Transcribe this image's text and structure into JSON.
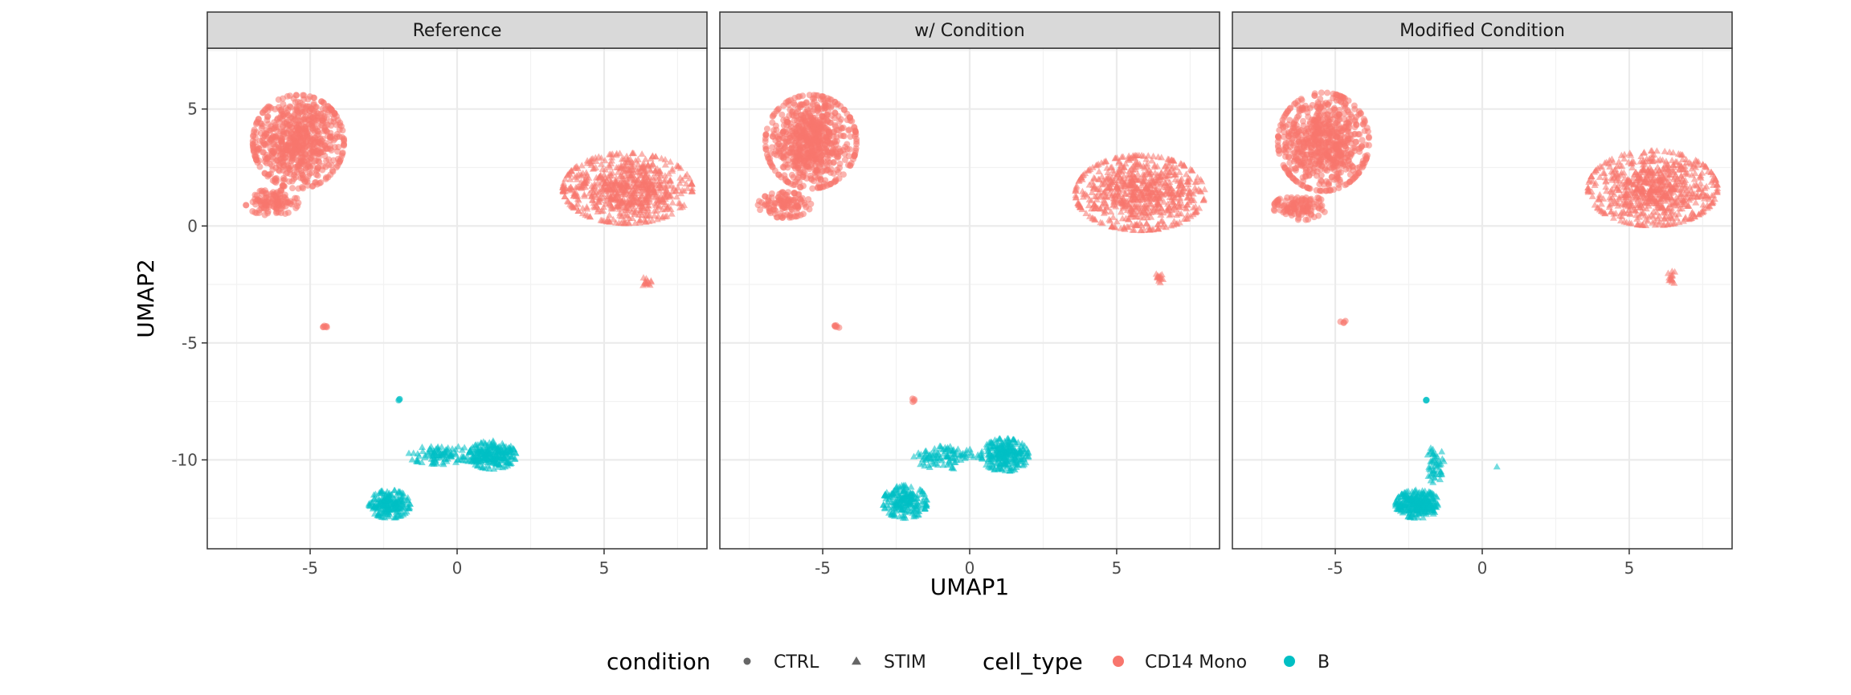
{
  "chart_data": {
    "type": "scatter",
    "xlabel": "UMAP1",
    "ylabel": "UMAP2",
    "xlim": [
      -8.5,
      8.5
    ],
    "ylim": [
      -13.8,
      7.6
    ],
    "x_ticks": [
      -5,
      0,
      5
    ],
    "y_ticks": [
      5,
      0,
      -5,
      -10
    ],
    "grid": true,
    "legend_position": "bottom",
    "legend": {
      "condition_title": "condition",
      "conditions": [
        {
          "name": "CTRL",
          "shape": "circle"
        },
        {
          "name": "STIM",
          "shape": "triangle"
        }
      ],
      "cell_type_title": "cell_type",
      "cell_types": [
        {
          "name": "CD14 Mono",
          "color": "#F8766D"
        },
        {
          "name": "B",
          "color": "#00BFC4"
        }
      ]
    },
    "panels": [
      {
        "title": "Reference",
        "clusters": [
          {
            "cell_type": "CD14 Mono",
            "condition": "CTRL",
            "cx": -5.4,
            "cy": 3.6,
            "rx": 1.55,
            "ry": 2.0,
            "n": 700
          },
          {
            "cell_type": "CD14 Mono",
            "condition": "CTRL",
            "cx": -6.3,
            "cy": 1.0,
            "rx": 0.9,
            "ry": 0.55,
            "n": 120
          },
          {
            "cell_type": "CD14 Mono",
            "condition": "STIM",
            "cx": 5.8,
            "cy": 1.6,
            "rx": 2.2,
            "ry": 1.5,
            "n": 700
          },
          {
            "cell_type": "CD14 Mono",
            "condition": "STIM",
            "cx": 6.45,
            "cy": -2.4,
            "rx": 0.15,
            "ry": 0.25,
            "n": 14
          },
          {
            "cell_type": "CD14 Mono",
            "condition": "CTRL",
            "cx": -4.5,
            "cy": -4.3,
            "rx": 0.1,
            "ry": 0.1,
            "n": 6
          },
          {
            "cell_type": "B",
            "condition": "CTRL",
            "cx": -2.0,
            "cy": -7.45,
            "rx": 0.06,
            "ry": 0.08,
            "n": 3
          },
          {
            "cell_type": "B",
            "condition": "STIM",
            "cx": -2.3,
            "cy": -11.9,
            "rx": 0.7,
            "ry": 0.6,
            "n": 200
          },
          {
            "cell_type": "B",
            "condition": "STIM",
            "cx": 1.2,
            "cy": -9.8,
            "rx": 0.8,
            "ry": 0.6,
            "n": 240
          },
          {
            "cell_type": "B",
            "condition": "STIM",
            "cx": -0.5,
            "cy": -9.8,
            "rx": 1.2,
            "ry": 0.4,
            "n": 100
          }
        ]
      },
      {
        "title": "w/ Condition",
        "clusters": [
          {
            "cell_type": "CD14 Mono",
            "condition": "CTRL",
            "cx": -5.4,
            "cy": 3.6,
            "rx": 1.55,
            "ry": 2.0,
            "n": 700
          },
          {
            "cell_type": "CD14 Mono",
            "condition": "CTRL",
            "cx": -6.3,
            "cy": 0.9,
            "rx": 0.9,
            "ry": 0.55,
            "n": 120
          },
          {
            "cell_type": "CD14 Mono",
            "condition": "STIM",
            "cx": 5.8,
            "cy": 1.4,
            "rx": 2.2,
            "ry": 1.6,
            "n": 700
          },
          {
            "cell_type": "CD14 Mono",
            "condition": "STIM",
            "cx": 6.45,
            "cy": -2.2,
            "rx": 0.15,
            "ry": 0.3,
            "n": 14
          },
          {
            "cell_type": "CD14 Mono",
            "condition": "CTRL",
            "cx": -4.5,
            "cy": -4.3,
            "rx": 0.1,
            "ry": 0.1,
            "n": 6
          },
          {
            "cell_type": "CD14 Mono",
            "condition": "CTRL",
            "cx": -1.9,
            "cy": -7.45,
            "rx": 0.08,
            "ry": 0.08,
            "n": 4
          },
          {
            "cell_type": "B",
            "condition": "STIM",
            "cx": -2.2,
            "cy": -11.8,
            "rx": 0.75,
            "ry": 0.7,
            "n": 200
          },
          {
            "cell_type": "B",
            "condition": "STIM",
            "cx": 1.2,
            "cy": -9.8,
            "rx": 0.8,
            "ry": 0.7,
            "n": 240
          },
          {
            "cell_type": "B",
            "condition": "STIM",
            "cx": -0.8,
            "cy": -9.9,
            "rx": 1.1,
            "ry": 0.5,
            "n": 100
          }
        ]
      },
      {
        "title": "Modified Condition",
        "clusters": [
          {
            "cell_type": "CD14 Mono",
            "condition": "CTRL",
            "cx": -5.4,
            "cy": 3.6,
            "rx": 1.55,
            "ry": 2.1,
            "n": 700
          },
          {
            "cell_type": "CD14 Mono",
            "condition": "CTRL",
            "cx": -6.2,
            "cy": 0.8,
            "rx": 0.9,
            "ry": 0.55,
            "n": 120
          },
          {
            "cell_type": "CD14 Mono",
            "condition": "STIM",
            "cx": 5.8,
            "cy": 1.6,
            "rx": 2.2,
            "ry": 1.6,
            "n": 700
          },
          {
            "cell_type": "CD14 Mono",
            "condition": "STIM",
            "cx": 6.45,
            "cy": -2.2,
            "rx": 0.15,
            "ry": 0.3,
            "n": 14
          },
          {
            "cell_type": "CD14 Mono",
            "condition": "CTRL",
            "cx": -4.7,
            "cy": -4.1,
            "rx": 0.15,
            "ry": 0.15,
            "n": 4
          },
          {
            "cell_type": "B",
            "condition": "CTRL",
            "cx": -1.9,
            "cy": -7.45,
            "rx": 0.06,
            "ry": 0.06,
            "n": 3
          },
          {
            "cell_type": "B",
            "condition": "STIM",
            "cx": -2.2,
            "cy": -11.9,
            "rx": 0.75,
            "ry": 0.6,
            "n": 280
          },
          {
            "cell_type": "B",
            "condition": "STIM",
            "cx": -1.6,
            "cy": -10.2,
            "rx": 0.3,
            "ry": 0.8,
            "n": 50
          },
          {
            "cell_type": "B",
            "condition": "STIM",
            "cx": 0.5,
            "cy": -10.3,
            "rx": 0.05,
            "ry": 0.05,
            "n": 1
          }
        ]
      }
    ]
  }
}
